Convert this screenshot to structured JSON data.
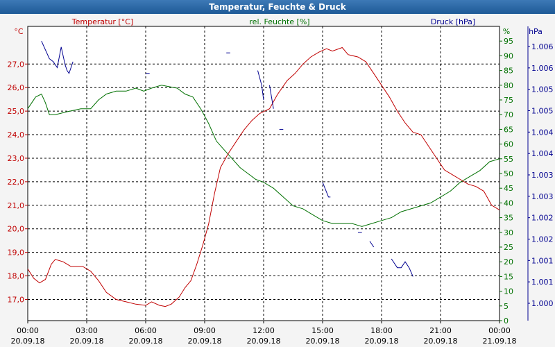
{
  "window": {
    "title": "Temperatur, Feuchte & Druck"
  },
  "colors": {
    "temp": "#c00000",
    "hum": "#007000",
    "press": "#000090",
    "grid": "#000000",
    "bg": "#ffffff"
  },
  "chart_data": {
    "type": "line",
    "title": "Temperatur, Feuchte & Druck",
    "grid": true,
    "x_ticks": [
      {
        "time": "00:00",
        "date": "20.09.18"
      },
      {
        "time": "03:00",
        "date": "20.09.18"
      },
      {
        "time": "06:00",
        "date": "20.09.18"
      },
      {
        "time": "09:00",
        "date": "20.09.18"
      },
      {
        "time": "12:00",
        "date": "20.09.18"
      },
      {
        "time": "15:00",
        "date": "20.09.18"
      },
      {
        "time": "18:00",
        "date": "20.09.18"
      },
      {
        "time": "21:00",
        "date": "20.09.18"
      },
      {
        "time": "00:00",
        "date": "21.09.18"
      }
    ],
    "x_unit_hours": 24,
    "axes": {
      "left": {
        "label": "Temperatur [°C]",
        "unit": "°C",
        "range": [
          16.1,
          28.6
        ],
        "ticks": [
          "17,0",
          "18,0",
          "19,0",
          "20,0",
          "21,0",
          "22,0",
          "23,0",
          "24,0",
          "25,0",
          "26,0",
          "27,0"
        ],
        "tick_values": [
          17,
          18,
          19,
          20,
          21,
          22,
          23,
          24,
          25,
          26,
          27
        ]
      },
      "right1": {
        "label": "rel. Feuchte [%]",
        "unit": "%",
        "range": [
          0,
          100
        ],
        "ticks": [
          "0",
          "5",
          "10",
          "15",
          "20",
          "25",
          "30",
          "35",
          "40",
          "45",
          "50",
          "55",
          "60",
          "65",
          "70",
          "75",
          "80",
          "85",
          "90",
          "95"
        ],
        "tick_values": [
          0,
          5,
          10,
          15,
          20,
          25,
          30,
          35,
          40,
          45,
          50,
          55,
          60,
          65,
          70,
          75,
          80,
          85,
          90,
          95
        ]
      },
      "right2": {
        "label": "Druck [hPa]",
        "unit": "hPa",
        "ticks": [
          "1.000",
          "1.001",
          "1.001",
          "1.002",
          "1.002",
          "1.003",
          "1.003",
          "1.004",
          "1.004",
          "1.005",
          "1.005",
          "1.006",
          "1.006"
        ]
      }
    },
    "series": [
      {
        "name": "Temperatur [°C]",
        "axis": "left",
        "points": [
          [
            0,
            18.3
          ],
          [
            0.3,
            17.9
          ],
          [
            0.6,
            17.7
          ],
          [
            0.9,
            17.85
          ],
          [
            1.2,
            18.5
          ],
          [
            1.4,
            18.7
          ],
          [
            1.8,
            18.6
          ],
          [
            2.2,
            18.4
          ],
          [
            2.8,
            18.4
          ],
          [
            3.2,
            18.2
          ],
          [
            3.6,
            17.8
          ],
          [
            4.0,
            17.3
          ],
          [
            4.5,
            17.0
          ],
          [
            5.0,
            16.9
          ],
          [
            5.5,
            16.8
          ],
          [
            6.0,
            16.75
          ],
          [
            6.3,
            16.9
          ],
          [
            6.7,
            16.75
          ],
          [
            7.0,
            16.7
          ],
          [
            7.3,
            16.8
          ],
          [
            7.7,
            17.1
          ],
          [
            8.0,
            17.5
          ],
          [
            8.3,
            17.8
          ],
          [
            8.6,
            18.5
          ],
          [
            8.9,
            19.3
          ],
          [
            9.2,
            20.2
          ],
          [
            9.5,
            21.5
          ],
          [
            9.8,
            22.6
          ],
          [
            10.2,
            23.2
          ],
          [
            10.6,
            23.7
          ],
          [
            11.0,
            24.2
          ],
          [
            11.4,
            24.6
          ],
          [
            11.8,
            24.9
          ],
          [
            12.3,
            25.1
          ],
          [
            12.7,
            25.7
          ],
          [
            13.2,
            26.3
          ],
          [
            13.6,
            26.6
          ],
          [
            14.0,
            27.0
          ],
          [
            14.4,
            27.3
          ],
          [
            14.8,
            27.5
          ],
          [
            15.2,
            27.65
          ],
          [
            15.5,
            27.55
          ],
          [
            16.0,
            27.7
          ],
          [
            16.3,
            27.4
          ],
          [
            16.8,
            27.3
          ],
          [
            17.2,
            27.1
          ],
          [
            17.6,
            26.6
          ],
          [
            18.0,
            26.1
          ],
          [
            18.4,
            25.6
          ],
          [
            18.8,
            25.0
          ],
          [
            19.2,
            24.5
          ],
          [
            19.6,
            24.1
          ],
          [
            20.0,
            24.0
          ],
          [
            20.4,
            23.5
          ],
          [
            20.8,
            23.0
          ],
          [
            21.2,
            22.5
          ],
          [
            21.6,
            22.3
          ],
          [
            22.0,
            22.1
          ],
          [
            22.4,
            21.9
          ],
          [
            22.8,
            21.8
          ],
          [
            23.2,
            21.6
          ],
          [
            23.6,
            21.0
          ],
          [
            24.0,
            20.8
          ]
        ]
      },
      {
        "name": "rel. Feuchte [%]",
        "axis": "right1",
        "points": [
          [
            0,
            72
          ],
          [
            0.4,
            76
          ],
          [
            0.7,
            77
          ],
          [
            0.9,
            74
          ],
          [
            1.1,
            70
          ],
          [
            1.4,
            70
          ],
          [
            2.0,
            71
          ],
          [
            2.7,
            72
          ],
          [
            3.2,
            72
          ],
          [
            3.6,
            75
          ],
          [
            4.0,
            77
          ],
          [
            4.5,
            78
          ],
          [
            5.0,
            78
          ],
          [
            5.5,
            79
          ],
          [
            5.9,
            78
          ],
          [
            6.3,
            79
          ],
          [
            6.8,
            80
          ],
          [
            7.2,
            79.5
          ],
          [
            7.6,
            79
          ],
          [
            8.0,
            77
          ],
          [
            8.4,
            76
          ],
          [
            8.8,
            72
          ],
          [
            9.2,
            67
          ],
          [
            9.6,
            61
          ],
          [
            10.0,
            58
          ],
          [
            10.4,
            55
          ],
          [
            10.8,
            52
          ],
          [
            11.2,
            50
          ],
          [
            11.6,
            48
          ],
          [
            12.0,
            47
          ],
          [
            12.5,
            45
          ],
          [
            13.0,
            42
          ],
          [
            13.5,
            39
          ],
          [
            14.0,
            38
          ],
          [
            14.5,
            36
          ],
          [
            15.0,
            34
          ],
          [
            15.5,
            33
          ],
          [
            16.0,
            33
          ],
          [
            16.5,
            33
          ],
          [
            17.0,
            32
          ],
          [
            17.5,
            33
          ],
          [
            18.0,
            34
          ],
          [
            18.5,
            35
          ],
          [
            19.0,
            37
          ],
          [
            19.5,
            38
          ],
          [
            20.0,
            39
          ],
          [
            20.5,
            40
          ],
          [
            21.0,
            42
          ],
          [
            21.5,
            44
          ],
          [
            22.0,
            47
          ],
          [
            22.5,
            49
          ],
          [
            23.0,
            51
          ],
          [
            23.5,
            54
          ],
          [
            24.0,
            55
          ]
        ]
      },
      {
        "name": "Druck [hPa]",
        "axis": "right2",
        "segments": [
          [
            [
              0.7,
              95
            ],
            [
              0.9,
              92
            ],
            [
              1.1,
              89
            ],
            [
              1.3,
              88
            ],
            [
              1.5,
              86
            ],
            [
              1.7,
              93
            ],
            [
              1.9,
              87
            ],
            [
              2.0,
              85
            ],
            [
              2.1,
              84
            ],
            [
              2.3,
              88
            ]
          ],
          [
            [
              10.1,
              91
            ],
            [
              10.3,
              91
            ]
          ],
          [
            [
              6.0,
              84
            ],
            [
              6.2,
              84
            ]
          ],
          [
            [
              11.7,
              85
            ],
            [
              11.9,
              80
            ],
            [
              12.0,
              75
            ]
          ],
          [
            [
              12.3,
              80
            ],
            [
              12.5,
              72
            ]
          ],
          [
            [
              12.8,
              65
            ],
            [
              13.0,
              65
            ]
          ],
          [
            [
              15.0,
              47
            ],
            [
              15.3,
              42
            ],
            [
              15.4,
              42
            ]
          ],
          [
            [
              16.8,
              30
            ],
            [
              17.0,
              30
            ]
          ],
          [
            [
              17.4,
              27
            ],
            [
              17.6,
              25
            ]
          ],
          [
            [
              18.5,
              21
            ],
            [
              18.8,
              18
            ],
            [
              19.0,
              18
            ],
            [
              19.2,
              20
            ],
            [
              19.4,
              18
            ],
            [
              19.6,
              15
            ]
          ]
        ]
      }
    ]
  }
}
